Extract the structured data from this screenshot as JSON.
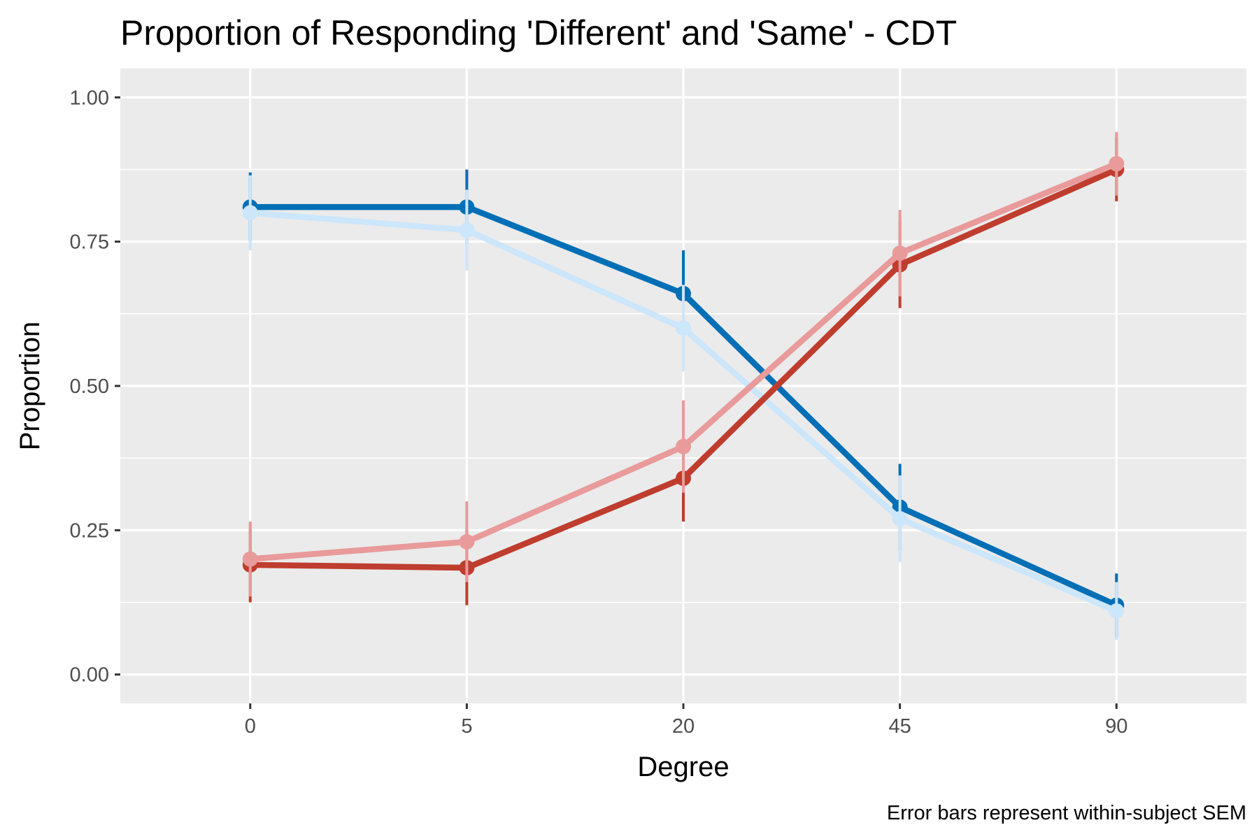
{
  "chart_data": {
    "type": "line",
    "title": "Proportion of Responding 'Different' and 'Same' - CDT",
    "xlabel": "Degree",
    "ylabel": "Proportion",
    "caption": "Error bars represent within-subject SEM",
    "categories": [
      "0",
      "5",
      "20",
      "45",
      "90"
    ],
    "ylim": [
      -0.05,
      1.05
    ],
    "yticks": [
      0,
      0.25,
      0.5,
      0.75,
      1.0
    ],
    "ytick_labels": [
      "0.00",
      "0.25",
      "0.50",
      "0.75",
      "1.00"
    ],
    "grid": true,
    "legend": "none",
    "series": [
      {
        "color": "#006fb6",
        "values": [
          0.81,
          0.81,
          0.66,
          0.29,
          0.12
        ],
        "err": [
          0.06,
          0.065,
          0.075,
          0.075,
          0.055
        ]
      },
      {
        "color": "#cce6fb",
        "values": [
          0.8,
          0.77,
          0.6,
          0.27,
          0.11
        ],
        "err": [
          0.065,
          0.07,
          0.075,
          0.075,
          0.05
        ]
      },
      {
        "color": "#bf3d2e",
        "values": [
          0.19,
          0.185,
          0.34,
          0.71,
          0.875
        ],
        "err": [
          0.065,
          0.065,
          0.075,
          0.075,
          0.055
        ]
      },
      {
        "color": "#e99a9a",
        "values": [
          0.2,
          0.23,
          0.395,
          0.73,
          0.885
        ],
        "err": [
          0.065,
          0.07,
          0.08,
          0.075,
          0.055
        ]
      }
    ],
    "colors": {
      "panel_background": "#ebebeb",
      "grid": "#ffffff",
      "tick_label": "#4d4d4d",
      "tick_mark": "#333333"
    }
  }
}
